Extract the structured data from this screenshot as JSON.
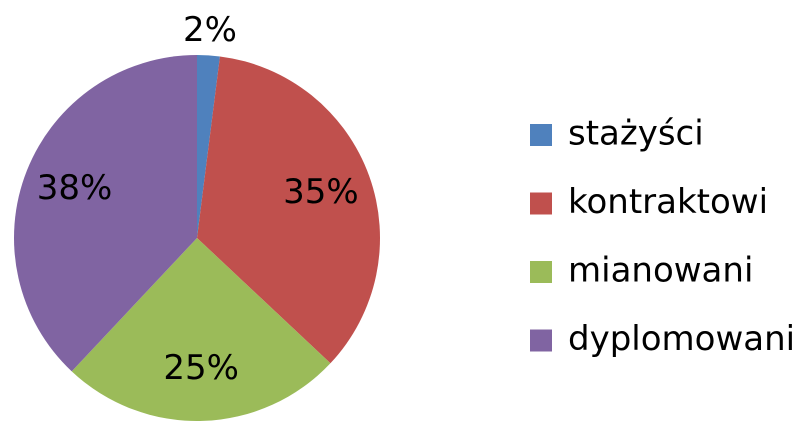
{
  "chart_data": {
    "type": "pie",
    "categories": [
      "stażyści",
      "kontraktowi",
      "mianowani",
      "dyplomowani"
    ],
    "values": [
      2,
      35,
      25,
      38
    ],
    "value_labels": [
      "2%",
      "35%",
      "25%",
      "38%"
    ],
    "colors": [
      "#4f81bd",
      "#c0504d",
      "#9bbb59",
      "#8064a2"
    ],
    "legend": "right"
  }
}
